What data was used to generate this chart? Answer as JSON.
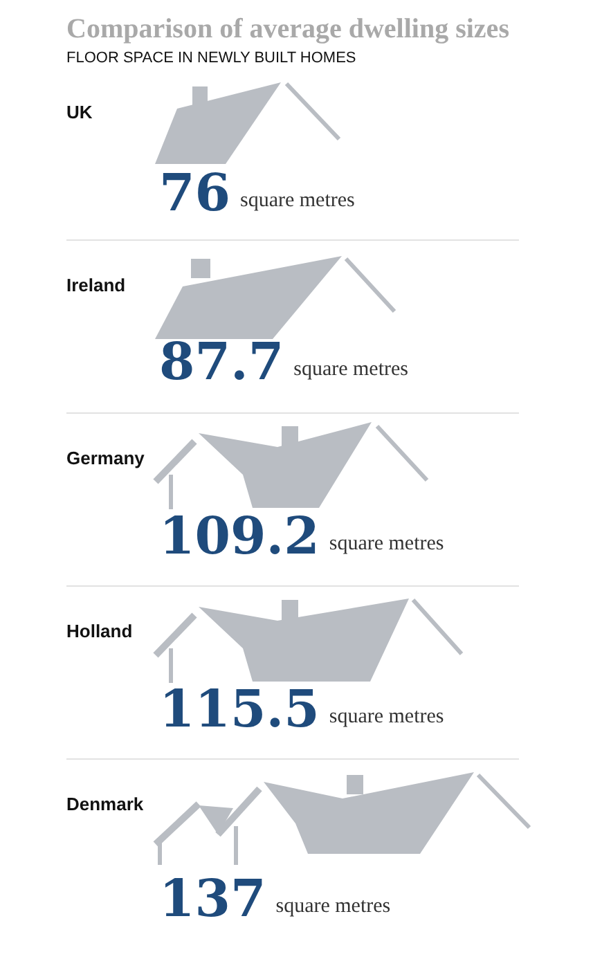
{
  "chart_data": {
    "type": "other",
    "title": "Comparison of average dwelling sizes",
    "subtitle": "FLOOR SPACE IN NEWLY BUILT HOMES",
    "categories": [
      "UK",
      "Ireland",
      "Germany",
      "Holland",
      "Denmark"
    ],
    "values": [
      76,
      87.7,
      109.2,
      115.5,
      137
    ],
    "xlabel": "square metres",
    "data_labels": true
  }
}
